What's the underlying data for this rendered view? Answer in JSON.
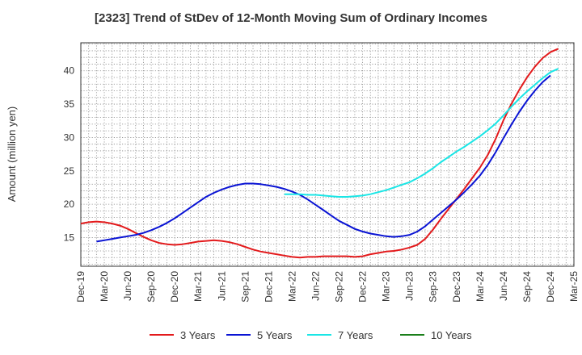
{
  "chart_data": {
    "type": "line",
    "title": "[2323]  Trend of StDev of 12-Month Moving Sum of Ordinary Incomes",
    "xlabel": "",
    "ylabel": "Amount (million yen)",
    "ylim": [
      10.7,
      44.2
    ],
    "yticks": [
      15,
      20,
      25,
      30,
      35,
      40
    ],
    "x_start": "2019-12",
    "x_end": "2025-03",
    "x_ticks": [
      "Dec-19",
      "Mar-20",
      "Jun-20",
      "Sep-20",
      "Dec-20",
      "Mar-21",
      "Jun-21",
      "Sep-21",
      "Dec-21",
      "Mar-22",
      "Jun-22",
      "Sep-22",
      "Dec-22",
      "Mar-23",
      "Jun-23",
      "Sep-23",
      "Dec-23",
      "Mar-24",
      "Jun-24",
      "Sep-24",
      "Dec-24",
      "Mar-25"
    ],
    "grid": true,
    "legend_position": "bottom",
    "series": [
      {
        "name": "3 Years",
        "color": "#e31a1c",
        "points": [
          [
            "2019-12",
            17.1
          ],
          [
            "2020-01",
            17.3
          ],
          [
            "2020-02",
            17.4
          ],
          [
            "2020-03",
            17.3
          ],
          [
            "2020-04",
            17.1
          ],
          [
            "2020-05",
            16.8
          ],
          [
            "2020-06",
            16.3
          ],
          [
            "2020-07",
            15.7
          ],
          [
            "2020-08",
            15.1
          ],
          [
            "2020-09",
            14.6
          ],
          [
            "2020-10",
            14.2
          ],
          [
            "2020-11",
            14.0
          ],
          [
            "2020-12",
            13.9
          ],
          [
            "2021-01",
            14.0
          ],
          [
            "2021-02",
            14.2
          ],
          [
            "2021-03",
            14.4
          ],
          [
            "2021-04",
            14.5
          ],
          [
            "2021-05",
            14.6
          ],
          [
            "2021-06",
            14.5
          ],
          [
            "2021-07",
            14.3
          ],
          [
            "2021-08",
            14.0
          ],
          [
            "2021-09",
            13.6
          ],
          [
            "2021-10",
            13.2
          ],
          [
            "2021-11",
            12.9
          ],
          [
            "2021-12",
            12.7
          ],
          [
            "2022-01",
            12.5
          ],
          [
            "2022-02",
            12.3
          ],
          [
            "2022-03",
            12.1
          ],
          [
            "2022-04",
            12.0
          ],
          [
            "2022-05",
            12.1
          ],
          [
            "2022-06",
            12.1
          ],
          [
            "2022-07",
            12.2
          ],
          [
            "2022-08",
            12.2
          ],
          [
            "2022-09",
            12.2
          ],
          [
            "2022-10",
            12.2
          ],
          [
            "2022-11",
            12.1
          ],
          [
            "2022-12",
            12.2
          ],
          [
            "2023-01",
            12.5
          ],
          [
            "2023-02",
            12.7
          ],
          [
            "2023-03",
            12.9
          ],
          [
            "2023-04",
            13.0
          ],
          [
            "2023-05",
            13.2
          ],
          [
            "2023-06",
            13.5
          ],
          [
            "2023-07",
            13.9
          ],
          [
            "2023-08",
            14.8
          ],
          [
            "2023-09",
            16.2
          ],
          [
            "2023-10",
            17.8
          ],
          [
            "2023-11",
            19.3
          ],
          [
            "2023-12",
            20.8
          ],
          [
            "2024-01",
            22.3
          ],
          [
            "2024-02",
            23.9
          ],
          [
            "2024-03",
            25.5
          ],
          [
            "2024-04",
            27.4
          ],
          [
            "2024-05",
            29.8
          ],
          [
            "2024-06",
            32.6
          ],
          [
            "2024-07",
            35.0
          ],
          [
            "2024-08",
            37.1
          ],
          [
            "2024-09",
            39.0
          ],
          [
            "2024-10",
            40.6
          ],
          [
            "2024-11",
            41.9
          ],
          [
            "2024-12",
            42.8
          ],
          [
            "2025-01",
            43.3
          ]
        ]
      },
      {
        "name": "5 Years",
        "color": "#0a14d4",
        "points": [
          [
            "2020-02",
            14.4
          ],
          [
            "2020-03",
            14.6
          ],
          [
            "2020-04",
            14.8
          ],
          [
            "2020-05",
            15.0
          ],
          [
            "2020-06",
            15.2
          ],
          [
            "2020-07",
            15.4
          ],
          [
            "2020-08",
            15.7
          ],
          [
            "2020-09",
            16.1
          ],
          [
            "2020-10",
            16.6
          ],
          [
            "2020-11",
            17.2
          ],
          [
            "2020-12",
            17.9
          ],
          [
            "2021-01",
            18.7
          ],
          [
            "2021-02",
            19.5
          ],
          [
            "2021-03",
            20.3
          ],
          [
            "2021-04",
            21.1
          ],
          [
            "2021-05",
            21.7
          ],
          [
            "2021-06",
            22.2
          ],
          [
            "2021-07",
            22.6
          ],
          [
            "2021-08",
            22.9
          ],
          [
            "2021-09",
            23.1
          ],
          [
            "2021-10",
            23.1
          ],
          [
            "2021-11",
            23.0
          ],
          [
            "2021-12",
            22.8
          ],
          [
            "2022-01",
            22.6
          ],
          [
            "2022-02",
            22.3
          ],
          [
            "2022-03",
            21.9
          ],
          [
            "2022-04",
            21.4
          ],
          [
            "2022-05",
            20.7
          ],
          [
            "2022-06",
            19.9
          ],
          [
            "2022-07",
            19.1
          ],
          [
            "2022-08",
            18.3
          ],
          [
            "2022-09",
            17.5
          ],
          [
            "2022-10",
            16.9
          ],
          [
            "2022-11",
            16.3
          ],
          [
            "2022-12",
            15.9
          ],
          [
            "2023-01",
            15.6
          ],
          [
            "2023-02",
            15.4
          ],
          [
            "2023-03",
            15.2
          ],
          [
            "2023-04",
            15.1
          ],
          [
            "2023-05",
            15.2
          ],
          [
            "2023-06",
            15.4
          ],
          [
            "2023-07",
            15.9
          ],
          [
            "2023-08",
            16.7
          ],
          [
            "2023-09",
            17.7
          ],
          [
            "2023-10",
            18.7
          ],
          [
            "2023-11",
            19.7
          ],
          [
            "2023-12",
            20.7
          ],
          [
            "2024-01",
            21.8
          ],
          [
            "2024-02",
            23.0
          ],
          [
            "2024-03",
            24.3
          ],
          [
            "2024-04",
            25.9
          ],
          [
            "2024-05",
            27.8
          ],
          [
            "2024-06",
            29.9
          ],
          [
            "2024-07",
            31.9
          ],
          [
            "2024-08",
            33.8
          ],
          [
            "2024-09",
            35.5
          ],
          [
            "2024-10",
            37.0
          ],
          [
            "2024-11",
            38.3
          ],
          [
            "2024-12",
            39.3
          ]
        ]
      },
      {
        "name": "7 Years",
        "color": "#1ae6e6",
        "points": [
          [
            "2022-02",
            21.5
          ],
          [
            "2022-03",
            21.5
          ],
          [
            "2022-04",
            21.5
          ],
          [
            "2022-05",
            21.4
          ],
          [
            "2022-06",
            21.4
          ],
          [
            "2022-07",
            21.3
          ],
          [
            "2022-08",
            21.2
          ],
          [
            "2022-09",
            21.1
          ],
          [
            "2022-10",
            21.1
          ],
          [
            "2022-11",
            21.2
          ],
          [
            "2022-12",
            21.3
          ],
          [
            "2023-01",
            21.5
          ],
          [
            "2023-02",
            21.8
          ],
          [
            "2023-03",
            22.1
          ],
          [
            "2023-04",
            22.5
          ],
          [
            "2023-05",
            22.9
          ],
          [
            "2023-06",
            23.3
          ],
          [
            "2023-07",
            23.9
          ],
          [
            "2023-08",
            24.6
          ],
          [
            "2023-09",
            25.4
          ],
          [
            "2023-10",
            26.3
          ],
          [
            "2023-11",
            27.1
          ],
          [
            "2023-12",
            27.9
          ],
          [
            "2024-01",
            28.6
          ],
          [
            "2024-02",
            29.4
          ],
          [
            "2024-03",
            30.2
          ],
          [
            "2024-04",
            31.1
          ],
          [
            "2024-05",
            32.1
          ],
          [
            "2024-06",
            33.3
          ],
          [
            "2024-07",
            34.6
          ],
          [
            "2024-08",
            35.8
          ],
          [
            "2024-09",
            36.9
          ],
          [
            "2024-10",
            37.9
          ],
          [
            "2024-11",
            38.9
          ],
          [
            "2024-12",
            39.8
          ],
          [
            "2025-01",
            40.3
          ]
        ]
      },
      {
        "name": "10 Years",
        "color": "#1a7f1a",
        "points": []
      }
    ]
  }
}
